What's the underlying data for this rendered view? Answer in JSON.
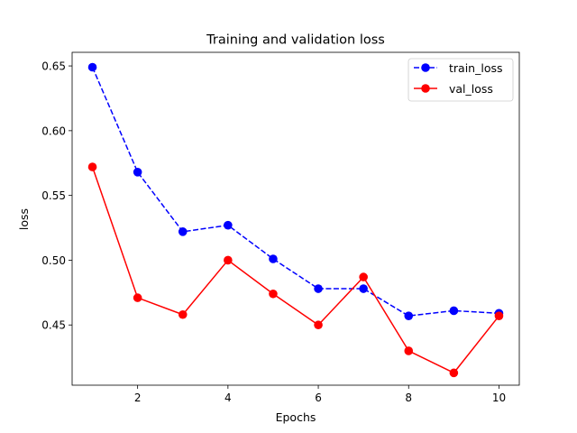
{
  "chart_data": {
    "type": "line",
    "title": "Training and validation loss",
    "xlabel": "Epochs",
    "ylabel": "loss",
    "xlim": [
      0.55,
      10.45
    ],
    "ylim": [
      0.4035,
      0.6605
    ],
    "x_ticks": [
      2,
      4,
      6,
      8,
      10
    ],
    "x_tick_labels": [
      "2",
      "4",
      "6",
      "8",
      "10"
    ],
    "y_ticks": [
      0.45,
      0.5,
      0.55,
      0.6,
      0.65
    ],
    "y_tick_labels": [
      "0.45",
      "0.50",
      "0.55",
      "0.60",
      "0.65"
    ],
    "grid": false,
    "legend_position": "top-right",
    "x": [
      1,
      2,
      3,
      4,
      5,
      6,
      7,
      8,
      9,
      10
    ],
    "series": [
      {
        "name": "train_loss",
        "color": "#0000ff",
        "linestyle": "dashed",
        "marker": "circle",
        "values": [
          0.649,
          0.568,
          0.522,
          0.527,
          0.501,
          0.478,
          0.478,
          0.457,
          0.461,
          0.459
        ]
      },
      {
        "name": "val_loss",
        "color": "#ff0000",
        "linestyle": "solid",
        "marker": "circle",
        "values": [
          0.572,
          0.471,
          0.458,
          0.5,
          0.474,
          0.45,
          0.487,
          0.43,
          0.413,
          0.457
        ]
      }
    ]
  }
}
